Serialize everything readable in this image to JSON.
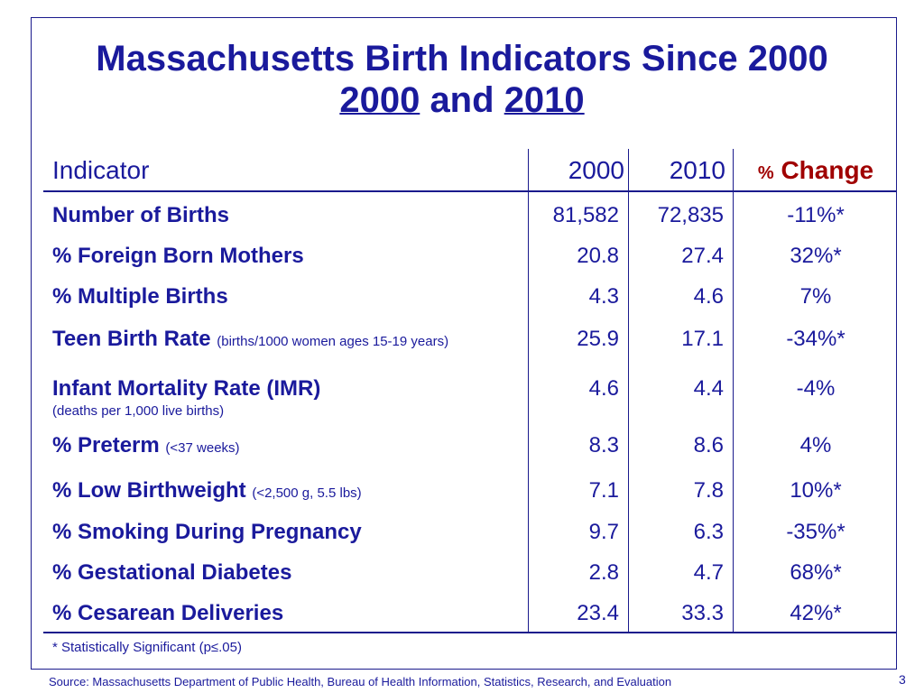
{
  "title": {
    "line1": "Massachusetts Birth Indicators Since 2000",
    "line2_year_a": "2000",
    "line2_and": "and",
    "line2_year_b": "2010"
  },
  "table": {
    "headers": {
      "indicator": "Indicator",
      "year_2000": "2000",
      "year_2010": "2010",
      "pct_symbol": "%",
      "change": "Change"
    },
    "rows": [
      {
        "label": "Number of Births",
        "qualifier": "",
        "note": "",
        "v2000": "81,582",
        "v2010": "72,835",
        "change": "-11%*"
      },
      {
        "label": "% Foreign Born Mothers",
        "qualifier": "",
        "note": "",
        "v2000": "20.8",
        "v2010": "27.4",
        "change": "32%*"
      },
      {
        "label": "% Multiple Births",
        "qualifier": "",
        "note": "",
        "v2000": "4.3",
        "v2010": "4.6",
        "change": "7%"
      },
      {
        "label": "Teen Birth Rate",
        "qualifier": "(births/1000 women ages 15-19 years)",
        "note": "",
        "v2000": "25.9",
        "v2010": "17.1",
        "change": "-34%*"
      },
      {
        "label": "Infant Mortality Rate (IMR)",
        "qualifier": "",
        "note": "(deaths per 1,000 live births)",
        "v2000": "4.6",
        "v2010": "4.4",
        "change": "-4%"
      },
      {
        "label": "% Preterm",
        "qualifier": "(<37 weeks)",
        "note": "",
        "v2000": "8.3",
        "v2010": "8.6",
        "change": "4%"
      },
      {
        "label": "% Low Birthweight",
        "qualifier": "(<2,500 g, 5.5 lbs)",
        "note": "",
        "v2000": "7.1",
        "v2010": "7.8",
        "change": "10%*"
      },
      {
        "label": "% Smoking During Pregnancy",
        "qualifier": "",
        "note": "",
        "v2000": "9.7",
        "v2010": "6.3",
        "change": "-35%*"
      },
      {
        "label": "% Gestational Diabetes",
        "qualifier": "",
        "note": "",
        "v2000": "2.8",
        "v2010": "4.7",
        "change": "68%*"
      },
      {
        "label": "% Cesarean Deliveries",
        "qualifier": "",
        "note": "",
        "v2000": "23.4",
        "v2010": "33.3",
        "change": "42%*"
      }
    ]
  },
  "footnote": "* Statistically Significant  (p≤.05)",
  "source": "Source:  Massachusetts Department of Public Health, Bureau of Health Information, Statistics, Research, and Evaluation",
  "page_number": "3",
  "colors": {
    "text": "#1a1a9c",
    "accent": "#a00000",
    "rule": "#1a1a8c"
  }
}
